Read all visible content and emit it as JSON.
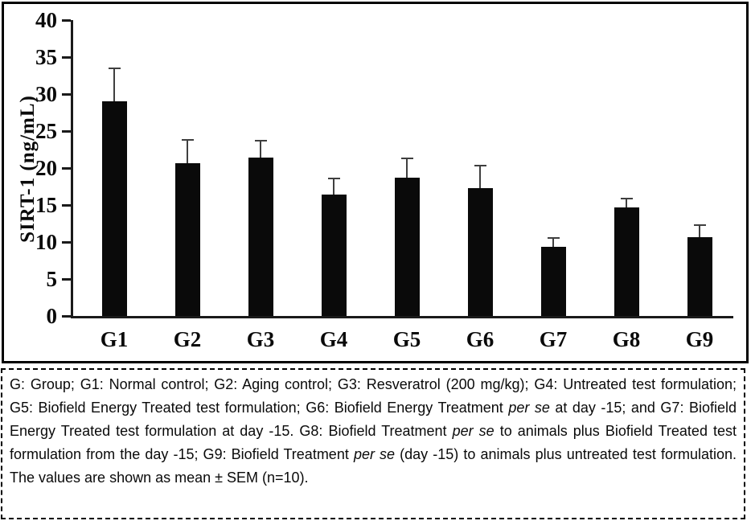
{
  "chart_data": {
    "type": "bar",
    "title": "",
    "ylabel": "SIRT-1 (ng/mL)",
    "xlabel": "",
    "categories": [
      "G1",
      "G2",
      "G3",
      "G4",
      "G5",
      "G6",
      "G7",
      "G8",
      "G9"
    ],
    "values": [
      29.0,
      20.7,
      21.4,
      16.4,
      18.7,
      17.3,
      9.3,
      14.7,
      10.7
    ],
    "errors": [
      4.5,
      3.1,
      2.3,
      2.2,
      2.6,
      3.0,
      1.2,
      1.2,
      1.6
    ],
    "error_note": "upper SEM error bars only",
    "ylim": [
      0,
      40
    ],
    "yticks": [
      0,
      5,
      10,
      15,
      20,
      25,
      30,
      35,
      40
    ],
    "grid": false,
    "legend_position": "none",
    "bar_color": "#0a0a0a",
    "error_color": "#3f3f3f"
  },
  "caption": {
    "segments": [
      {
        "text": "G: Group; G1: Normal control; G2: Aging control; G3: Resveratrol (200 mg/kg); G4: Untreated test formulation; G5: Biofield Energy Treated test formulation; G6: Biofield Energy Treatment ",
        "italic": false
      },
      {
        "text": "per se",
        "italic": true
      },
      {
        "text": " at day -15; and G7: Biofield Energy Treated test formulation at day -15. G8: Biofield Treatment ",
        "italic": false
      },
      {
        "text": "per se",
        "italic": true
      },
      {
        "text": " to animals plus Biofield Treated test formulation from the day -15; G9: Biofield Treatment ",
        "italic": false
      },
      {
        "text": "per se",
        "italic": true
      },
      {
        "text": " (day -15) to animals plus untreated test formulation. The values are shown as mean ± SEM (n=10).",
        "italic": false
      }
    ]
  }
}
